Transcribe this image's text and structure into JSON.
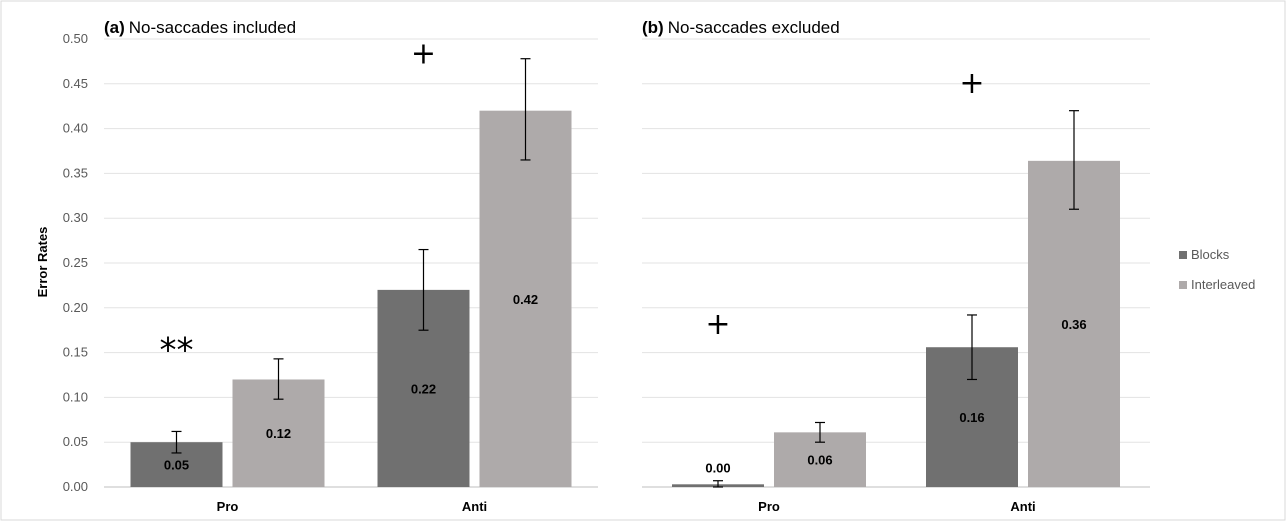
{
  "chart_data": {
    "type": "bar",
    "ylabel": "Error Rates",
    "ylim": [
      0,
      0.5
    ],
    "yticks": [
      "0.00",
      "0.05",
      "0.10",
      "0.15",
      "0.20",
      "0.25",
      "0.30",
      "0.35",
      "0.40",
      "0.45",
      "0.50"
    ],
    "grid": true,
    "legend_position": "right",
    "legend": [
      "Blocks",
      "Interleaved"
    ],
    "colors": {
      "Blocks": "#707070",
      "Interleaved": "#aeaaaa"
    },
    "panels": [
      {
        "label": "(a)",
        "title": "No-saccades included",
        "categories": [
          "Pro",
          "Anti"
        ],
        "series": [
          {
            "name": "Blocks",
            "values": [
              0.05,
              0.22
            ],
            "labels": [
              "0.05",
              "0.22"
            ],
            "error_low": [
              0.038,
              0.175
            ],
            "error_high": [
              0.062,
              0.265
            ]
          },
          {
            "name": "Interleaved",
            "values": [
              0.12,
              0.42
            ],
            "labels": [
              "0.12",
              "0.42"
            ],
            "error_low": [
              0.098,
              0.365
            ],
            "error_high": [
              0.143,
              0.478
            ]
          }
        ],
        "annotations": [
          {
            "text": "**",
            "category": 0,
            "y": 0.16
          },
          {
            "text": "+",
            "category": 1,
            "y": 0.485
          }
        ]
      },
      {
        "label": "(b)",
        "title": "No-saccades excluded",
        "categories": [
          "Pro",
          "Anti"
        ],
        "series": [
          {
            "name": "Blocks",
            "values": [
              0.003,
              0.156
            ],
            "labels": [
              "0.00",
              "0.16"
            ],
            "error_low": [
              0.0,
              0.12
            ],
            "error_high": [
              0.007,
              0.192
            ]
          },
          {
            "name": "Interleaved",
            "values": [
              0.061,
              0.364
            ],
            "labels": [
              "0.06",
              "0.36"
            ],
            "error_low": [
              0.05,
              0.31
            ],
            "error_high": [
              0.072,
              0.42
            ]
          }
        ],
        "annotations": [
          {
            "text": "+",
            "category": 0,
            "y": 0.183
          },
          {
            "text": "+",
            "category": 1,
            "y": 0.452
          }
        ]
      }
    ]
  }
}
